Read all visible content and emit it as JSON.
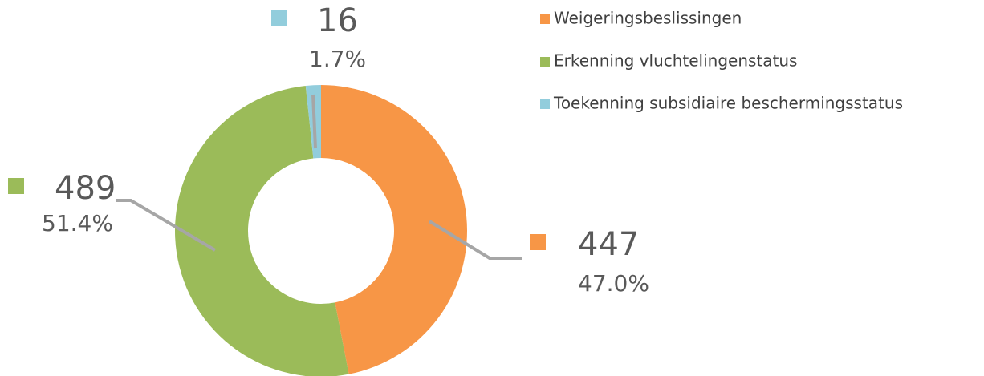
{
  "chart_data": {
    "type": "donut",
    "categories": [
      "Weigeringsbeslissingen",
      "Erkenning vluchtelingenstatus",
      "Toekenning subsidiaire beschermingsstatus"
    ],
    "values": [
      447,
      489,
      16
    ],
    "percentages": [
      47.0,
      51.4,
      1.7
    ],
    "percentage_labels": [
      "47.0%",
      "51.4%",
      "1.7%"
    ],
    "colors": [
      "#f79646",
      "#9bbb59",
      "#92cddc"
    ],
    "legend": "top-right"
  }
}
